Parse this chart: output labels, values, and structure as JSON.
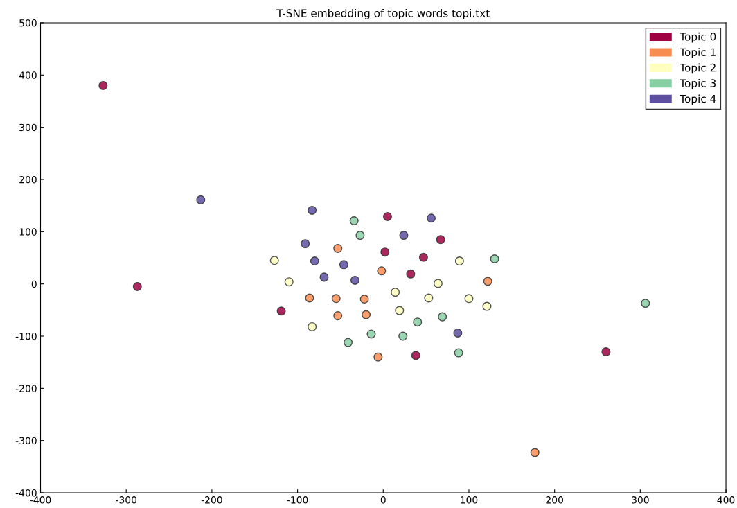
{
  "chart_data": {
    "type": "scatter",
    "title": "T-SNE embedding of topic words topi.txt",
    "xlim": [
      -400,
      400
    ],
    "xticks": [
      -400,
      -300,
      -200,
      -100,
      0,
      100,
      200,
      300,
      400
    ],
    "ylim": [
      -400,
      500
    ],
    "yticks": [
      -400,
      -300,
      -200,
      -100,
      0,
      100,
      200,
      300,
      400,
      500
    ],
    "grid": false,
    "legend": "top right",
    "marker": "circle",
    "series": [
      {
        "name": "Topic 0",
        "color": "#9e0142",
        "x": [
          -327,
          -287,
          -119,
          5,
          2,
          67,
          47,
          32,
          38,
          260
        ],
        "values": [
          380,
          -5,
          -52,
          129,
          61,
          85,
          51,
          19,
          -137,
          -130
        ]
      },
      {
        "name": "Topic 1",
        "color": "#f88d52",
        "x": [
          -53,
          -2,
          122,
          -86,
          -55,
          -22,
          -53,
          -20,
          -6,
          177
        ],
        "values": [
          68,
          25,
          5,
          -27,
          -28,
          -29,
          -61,
          -59,
          -140,
          -323
        ]
      },
      {
        "name": "Topic 2",
        "color": "#ffffbf",
        "x": [
          -127,
          -110,
          -83,
          14,
          19,
          53,
          64,
          89,
          100,
          121
        ],
        "values": [
          45,
          4,
          -82,
          -16,
          -51,
          -27,
          1,
          44,
          -28,
          -43
        ]
      },
      {
        "name": "Topic 3",
        "color": "#88cfa4",
        "x": [
          -34,
          -27,
          130,
          40,
          69,
          -14,
          -41,
          23,
          88,
          306
        ],
        "values": [
          121,
          93,
          48,
          -73,
          -63,
          -96,
          -112,
          -100,
          -132,
          -37
        ]
      },
      {
        "name": "Topic 4",
        "color": "#5e4fa2",
        "x": [
          -83,
          56,
          24,
          -91,
          -80,
          -46,
          -69,
          -33,
          87,
          -213
        ],
        "values": [
          141,
          126,
          93,
          77,
          44,
          37,
          13,
          7,
          -94,
          161
        ]
      }
    ]
  }
}
